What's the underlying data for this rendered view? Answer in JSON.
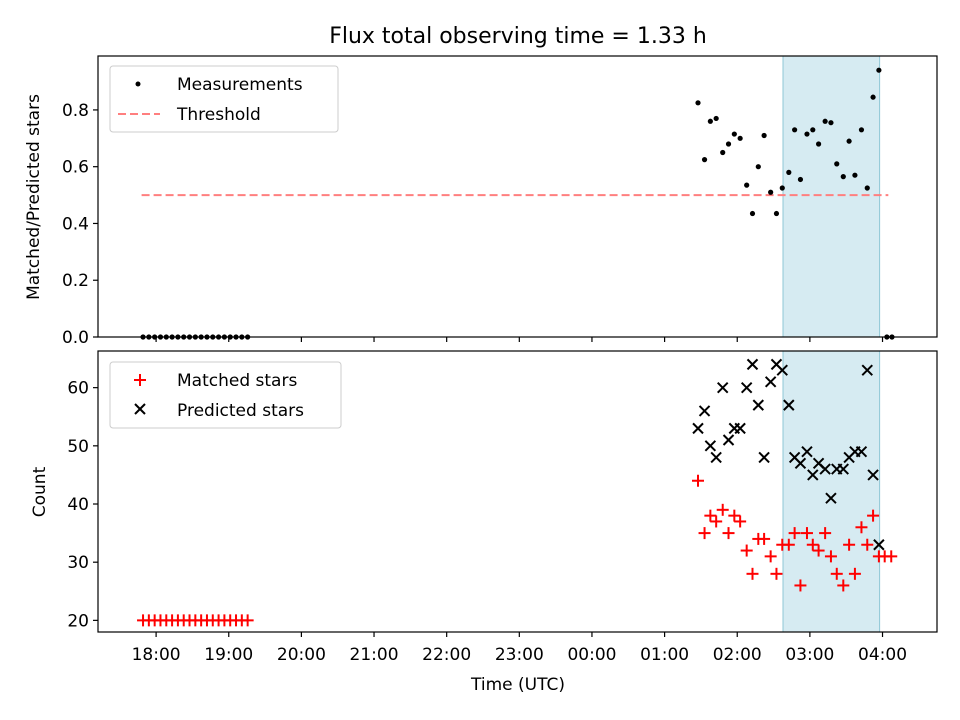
{
  "chart_data": {
    "title": "Flux total observing time = 1.33 h",
    "x_axis": {
      "label": "Time (UTC)",
      "range_hours": [
        17.2,
        28.75
      ],
      "ticks": [
        {
          "h": 18,
          "label": "18:00"
        },
        {
          "h": 19,
          "label": "19:00"
        },
        {
          "h": 20,
          "label": "20:00"
        },
        {
          "h": 21,
          "label": "21:00"
        },
        {
          "h": 22,
          "label": "22:00"
        },
        {
          "h": 23,
          "label": "23:00"
        },
        {
          "h": 24,
          "label": "00:00"
        },
        {
          "h": 25,
          "label": "01:00"
        },
        {
          "h": 26,
          "label": "02:00"
        },
        {
          "h": 27,
          "label": "03:00"
        },
        {
          "h": 28,
          "label": "04:00"
        }
      ]
    },
    "observing_window_hours": [
      26.63,
      27.96
    ],
    "top_panel": {
      "type": "scatter",
      "ylabel": "Matched/Predicted stars",
      "ylim": [
        0,
        0.99
      ],
      "yticks": [
        {
          "v": 0.0,
          "label": "0.0"
        },
        {
          "v": 0.2,
          "label": "0.2"
        },
        {
          "v": 0.4,
          "label": "0.4"
        },
        {
          "v": 0.6,
          "label": "0.6"
        },
        {
          "v": 0.8,
          "label": "0.8"
        }
      ],
      "legend": {
        "position": "upper-left",
        "entries": [
          "Measurements",
          "Threshold"
        ]
      },
      "threshold": {
        "name": "Threshold",
        "value": 0.5,
        "x_range": [
          17.8,
          28.08
        ],
        "color": "#ff7f7f"
      },
      "measurements": {
        "name": "Measurements",
        "color": "#000000",
        "points": [
          [
            17.82,
            0
          ],
          [
            17.9,
            0
          ],
          [
            17.98,
            0
          ],
          [
            18.06,
            0
          ],
          [
            18.14,
            0
          ],
          [
            18.22,
            0
          ],
          [
            18.3,
            0
          ],
          [
            18.38,
            0
          ],
          [
            18.46,
            0
          ],
          [
            18.54,
            0
          ],
          [
            18.62,
            0
          ],
          [
            18.7,
            0
          ],
          [
            18.78,
            0
          ],
          [
            18.86,
            0
          ],
          [
            18.94,
            0
          ],
          [
            19.02,
            0
          ],
          [
            19.1,
            0
          ],
          [
            19.18,
            0
          ],
          [
            19.26,
            0
          ],
          [
            25.46,
            0.825
          ],
          [
            25.55,
            0.625
          ],
          [
            25.63,
            0.76
          ],
          [
            25.71,
            0.77
          ],
          [
            25.8,
            0.65
          ],
          [
            25.88,
            0.68
          ],
          [
            25.96,
            0.715
          ],
          [
            26.04,
            0.7
          ],
          [
            26.13,
            0.535
          ],
          [
            26.21,
            0.435
          ],
          [
            26.29,
            0.6
          ],
          [
            26.37,
            0.71
          ],
          [
            26.46,
            0.51
          ],
          [
            26.54,
            0.435
          ],
          [
            26.62,
            0.525
          ],
          [
            26.71,
            0.58
          ],
          [
            26.79,
            0.73
          ],
          [
            26.87,
            0.555
          ],
          [
            26.96,
            0.715
          ],
          [
            27.04,
            0.73
          ],
          [
            27.12,
            0.68
          ],
          [
            27.21,
            0.76
          ],
          [
            27.29,
            0.755
          ],
          [
            27.37,
            0.61
          ],
          [
            27.46,
            0.565
          ],
          [
            27.54,
            0.69
          ],
          [
            27.62,
            0.57
          ],
          [
            27.71,
            0.73
          ],
          [
            27.79,
            0.525
          ],
          [
            27.87,
            0.845
          ],
          [
            27.95,
            0.94
          ],
          [
            28.06,
            0
          ],
          [
            28.13,
            0
          ]
        ]
      }
    },
    "bottom_panel": {
      "type": "scatter",
      "ylabel": "Count",
      "ylim": [
        18,
        66.3
      ],
      "yticks": [
        {
          "v": 20,
          "label": "20"
        },
        {
          "v": 30,
          "label": "30"
        },
        {
          "v": 40,
          "label": "40"
        },
        {
          "v": 50,
          "label": "50"
        },
        {
          "v": 60,
          "label": "60"
        }
      ],
      "legend": {
        "position": "upper-left",
        "entries": [
          "Matched stars",
          "Predicted stars"
        ]
      },
      "series": [
        {
          "name": "Matched stars",
          "marker": "+",
          "color": "#ff0000",
          "points": [
            [
              17.82,
              20
            ],
            [
              17.9,
              20
            ],
            [
              17.98,
              20
            ],
            [
              18.06,
              20
            ],
            [
              18.14,
              20
            ],
            [
              18.22,
              20
            ],
            [
              18.3,
              20
            ],
            [
              18.38,
              20
            ],
            [
              18.46,
              20
            ],
            [
              18.54,
              20
            ],
            [
              18.62,
              20
            ],
            [
              18.7,
              20
            ],
            [
              18.78,
              20
            ],
            [
              18.86,
              20
            ],
            [
              18.94,
              20
            ],
            [
              19.02,
              20
            ],
            [
              19.1,
              20
            ],
            [
              19.18,
              20
            ],
            [
              19.26,
              20
            ],
            [
              25.46,
              44
            ],
            [
              25.55,
              35
            ],
            [
              25.63,
              38
            ],
            [
              25.71,
              37
            ],
            [
              25.8,
              39
            ],
            [
              25.88,
              35
            ],
            [
              25.96,
              38
            ],
            [
              26.04,
              37
            ],
            [
              26.13,
              32
            ],
            [
              26.21,
              28
            ],
            [
              26.29,
              34
            ],
            [
              26.37,
              34
            ],
            [
              26.46,
              31
            ],
            [
              26.54,
              28
            ],
            [
              26.62,
              33
            ],
            [
              26.71,
              33
            ],
            [
              26.79,
              35
            ],
            [
              26.87,
              26
            ],
            [
              26.96,
              35
            ],
            [
              27.04,
              33
            ],
            [
              27.12,
              32
            ],
            [
              27.21,
              35
            ],
            [
              27.29,
              31
            ],
            [
              27.37,
              28
            ],
            [
              27.46,
              26
            ],
            [
              27.54,
              33
            ],
            [
              27.62,
              28
            ],
            [
              27.71,
              36
            ],
            [
              27.79,
              33
            ],
            [
              27.87,
              38
            ],
            [
              27.95,
              31
            ],
            [
              28.03,
              31
            ],
            [
              28.12,
              31
            ]
          ]
        },
        {
          "name": "Predicted stars",
          "marker": "x",
          "color": "#000000",
          "points": [
            [
              25.46,
              53
            ],
            [
              25.55,
              56
            ],
            [
              25.63,
              50
            ],
            [
              25.71,
              48
            ],
            [
              25.8,
              60
            ],
            [
              25.88,
              51
            ],
            [
              25.96,
              53
            ],
            [
              26.04,
              53
            ],
            [
              26.13,
              60
            ],
            [
              26.21,
              64
            ],
            [
              26.29,
              57
            ],
            [
              26.37,
              48
            ],
            [
              26.46,
              61
            ],
            [
              26.54,
              64
            ],
            [
              26.62,
              63
            ],
            [
              26.71,
              57
            ],
            [
              26.79,
              48
            ],
            [
              26.87,
              47
            ],
            [
              26.96,
              49
            ],
            [
              27.04,
              45
            ],
            [
              27.12,
              47
            ],
            [
              27.21,
              46
            ],
            [
              27.29,
              41
            ],
            [
              27.37,
              46
            ],
            [
              27.46,
              46
            ],
            [
              27.54,
              48
            ],
            [
              27.62,
              49
            ],
            [
              27.71,
              49
            ],
            [
              27.79,
              63
            ],
            [
              27.87,
              45
            ],
            [
              27.95,
              33
            ]
          ]
        }
      ]
    }
  }
}
